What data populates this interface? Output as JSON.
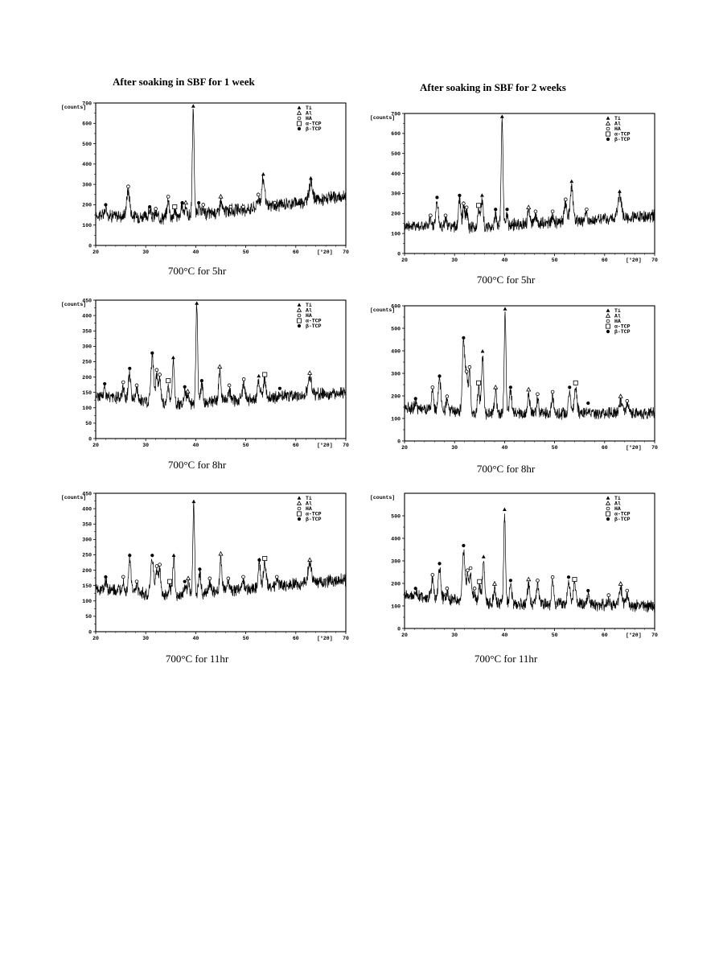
{
  "column_titles": [
    "After soaking  in SBF for 1 week",
    "After soaking  in SBF for 2 weeks"
  ],
  "chart_data": [
    {
      "type": "line",
      "column": "1 week",
      "caption": "700°C for 5hr",
      "ylabel": "[counts]",
      "xlabel": "[°2θ]",
      "xlim": [
        20,
        70
      ],
      "ylim": [
        0,
        700
      ],
      "xticks": [
        20,
        30,
        40,
        50,
        60,
        70
      ],
      "yticks": [
        0,
        100,
        200,
        300,
        400,
        500,
        600,
        700
      ],
      "legend": [
        "Ti",
        "Al",
        "HA",
        "α-TCP",
        "β-TCP"
      ],
      "baseline": {
        "x": [
          20,
          35,
          70
        ],
        "y": [
          150,
          135,
          240
        ]
      },
      "peaks": [
        {
          "x": 26.5,
          "y": 270,
          "w": 0.45,
          "marker": "HA"
        },
        {
          "x": 34.5,
          "y": 220,
          "w": 0.35,
          "marker": "HA"
        },
        {
          "x": 39.5,
          "y": 670,
          "w": 0.25,
          "marker": "Ti"
        },
        {
          "x": 45,
          "y": 220,
          "w": 0.3,
          "marker": "Al"
        },
        {
          "x": 52.5,
          "y": 230,
          "w": 0.4,
          "marker": "HA"
        },
        {
          "x": 53.5,
          "y": 330,
          "w": 0.4,
          "marker": "Ti"
        },
        {
          "x": 63,
          "y": 310,
          "w": 0.5,
          "marker": "Ti"
        },
        {
          "x": 38,
          "y": 190,
          "w": 0.3,
          "marker": "Al"
        },
        {
          "x": 37.3,
          "y": 190,
          "w": 0.3,
          "marker": "β-TCP"
        },
        {
          "x": 35.8,
          "y": 170,
          "w": 0.3,
          "marker": "α-TCP"
        },
        {
          "x": 30.8,
          "y": 170,
          "w": 0.3,
          "marker": "β-TCP"
        },
        {
          "x": 22,
          "y": 180,
          "w": 0.3,
          "marker": "β-TCP"
        },
        {
          "x": 40.6,
          "y": 190,
          "w": 0.25,
          "marker": "β-TCP"
        },
        {
          "x": 41.5,
          "y": 180,
          "w": 0.3,
          "marker": "HA"
        },
        {
          "x": 55.8,
          "y": 190,
          "w": 0.3,
          "marker": "HA"
        },
        {
          "x": 47,
          "y": 170,
          "w": 0.3,
          "marker": "HA"
        },
        {
          "x": 49.5,
          "y": 170,
          "w": 0.3,
          "marker": "HA"
        },
        {
          "x": 32,
          "y": 160,
          "w": 0.3,
          "marker": "HA"
        }
      ]
    },
    {
      "type": "line",
      "column": "2 weeks",
      "caption": "700°C for 5hr",
      "ylabel": "[counts]",
      "xlabel": "[°2θ]",
      "xlim": [
        20,
        70
      ],
      "ylim": [
        0,
        700
      ],
      "xticks": [
        20,
        30,
        40,
        50,
        60,
        70
      ],
      "yticks": [
        0,
        100,
        200,
        300,
        400,
        500,
        600,
        700
      ],
      "legend": [
        "Ti",
        "Al",
        "HA",
        "α-TCP",
        "β-TCP"
      ],
      "baseline": {
        "x": [
          20,
          35,
          70
        ],
        "y": [
          140,
          130,
          190
        ]
      },
      "peaks": [
        {
          "x": 26.5,
          "y": 260,
          "w": 0.35,
          "marker": "β-TCP"
        },
        {
          "x": 31,
          "y": 270,
          "w": 0.3,
          "marker": "β-TCP"
        },
        {
          "x": 31.8,
          "y": 230,
          "w": 0.3,
          "marker": "HA"
        },
        {
          "x": 32.4,
          "y": 210,
          "w": 0.3,
          "marker": "HA"
        },
        {
          "x": 34.8,
          "y": 220,
          "w": 0.3,
          "marker": "α-TCP"
        },
        {
          "x": 35.5,
          "y": 270,
          "w": 0.3,
          "marker": "Ti"
        },
        {
          "x": 38.2,
          "y": 200,
          "w": 0.3,
          "marker": "β-TCP"
        },
        {
          "x": 39.5,
          "y": 680,
          "w": 0.25,
          "marker": "Ti"
        },
        {
          "x": 40.5,
          "y": 200,
          "w": 0.25,
          "marker": "β-TCP"
        },
        {
          "x": 44.8,
          "y": 210,
          "w": 0.3,
          "marker": "Al"
        },
        {
          "x": 46.2,
          "y": 190,
          "w": 0.3,
          "marker": "HA"
        },
        {
          "x": 49.6,
          "y": 190,
          "w": 0.3,
          "marker": "HA"
        },
        {
          "x": 52.2,
          "y": 250,
          "w": 0.4,
          "marker": "HA"
        },
        {
          "x": 53.4,
          "y": 340,
          "w": 0.4,
          "marker": "Ti"
        },
        {
          "x": 56.4,
          "y": 200,
          "w": 0.3,
          "marker": "HA"
        },
        {
          "x": 63,
          "y": 290,
          "w": 0.5,
          "marker": "Ti"
        },
        {
          "x": 25.2,
          "y": 170,
          "w": 0.3,
          "marker": "HA"
        },
        {
          "x": 28.2,
          "y": 170,
          "w": 0.3,
          "marker": "HA"
        }
      ]
    },
    {
      "type": "line",
      "column": "1 week",
      "caption": "700°C for 8hr",
      "ylabel": "[counts]",
      "xlabel": "[°2θ]",
      "xlim": [
        20,
        70
      ],
      "ylim": [
        0,
        450
      ],
      "xticks": [
        20,
        30,
        40,
        50,
        60,
        70
      ],
      "yticks": [
        0,
        50,
        100,
        150,
        200,
        250,
        300,
        350,
        400,
        450
      ],
      "legend": [
        "Ti",
        "Al",
        "HA",
        "α-TCP",
        "β-TCP"
      ],
      "baseline": {
        "x": [
          20,
          35,
          70
        ],
        "y": [
          140,
          110,
          150
        ]
      },
      "peaks": [
        {
          "x": 21.8,
          "y": 165,
          "w": 0.3,
          "marker": "β-TCP"
        },
        {
          "x": 25.5,
          "y": 170,
          "w": 0.3,
          "marker": "HA"
        },
        {
          "x": 26.8,
          "y": 215,
          "w": 0.35,
          "marker": "β-TCP"
        },
        {
          "x": 28.2,
          "y": 160,
          "w": 0.3,
          "marker": "HA"
        },
        {
          "x": 31.3,
          "y": 265,
          "w": 0.4,
          "marker": "β-TCP"
        },
        {
          "x": 32.2,
          "y": 210,
          "w": 0.3,
          "marker": "HA"
        },
        {
          "x": 32.8,
          "y": 195,
          "w": 0.3,
          "marker": "HA"
        },
        {
          "x": 34.5,
          "y": 175,
          "w": 0.3,
          "marker": "α-TCP"
        },
        {
          "x": 35.5,
          "y": 250,
          "w": 0.3,
          "marker": "Ti"
        },
        {
          "x": 37.8,
          "y": 155,
          "w": 0.3,
          "marker": "β-TCP"
        },
        {
          "x": 38.4,
          "y": 140,
          "w": 0.3,
          "marker": "Al"
        },
        {
          "x": 40.2,
          "y": 438,
          "w": 0.25,
          "marker": "Ti"
        },
        {
          "x": 41.2,
          "y": 175,
          "w": 0.3,
          "marker": "β-TCP"
        },
        {
          "x": 44.8,
          "y": 220,
          "w": 0.3,
          "marker": "Al"
        },
        {
          "x": 46.7,
          "y": 160,
          "w": 0.3,
          "marker": "HA"
        },
        {
          "x": 49.6,
          "y": 180,
          "w": 0.3,
          "marker": "HA"
        },
        {
          "x": 52.6,
          "y": 190,
          "w": 0.35,
          "marker": "Ti"
        },
        {
          "x": 53.8,
          "y": 195,
          "w": 0.35,
          "marker": "α-TCP"
        },
        {
          "x": 56.8,
          "y": 150,
          "w": 0.3,
          "marker": "β-TCP"
        },
        {
          "x": 62.8,
          "y": 200,
          "w": 0.5,
          "marker": "Al"
        }
      ]
    },
    {
      "type": "line",
      "column": "2 weeks",
      "caption": "700°C for 8hr",
      "ylabel": "[counts]",
      "xlabel": "[°2θ]",
      "xlim": [
        20,
        70
      ],
      "ylim": [
        0,
        600
      ],
      "xticks": [
        20,
        30,
        40,
        50,
        60,
        70
      ],
      "yticks": [
        0,
        100,
        200,
        300,
        400,
        500,
        600
      ],
      "legend": [
        "Ti",
        "Al",
        "HA",
        "α-TCP",
        "β-TCP"
      ],
      "baseline": {
        "x": [
          20,
          35,
          70
        ],
        "y": [
          150,
          120,
          125
        ]
      },
      "peaks": [
        {
          "x": 22.2,
          "y": 170,
          "w": 0.3,
          "marker": "β-TCP"
        },
        {
          "x": 25.6,
          "y": 220,
          "w": 0.3,
          "marker": "HA"
        },
        {
          "x": 27,
          "y": 270,
          "w": 0.35,
          "marker": "β-TCP"
        },
        {
          "x": 28.5,
          "y": 180,
          "w": 0.3,
          "marker": "HA"
        },
        {
          "x": 31.8,
          "y": 440,
          "w": 0.35,
          "marker": "β-TCP"
        },
        {
          "x": 32.4,
          "y": 290,
          "w": 0.3,
          "marker": "HA"
        },
        {
          "x": 33,
          "y": 310,
          "w": 0.3,
          "marker": "HA"
        },
        {
          "x": 34.8,
          "y": 240,
          "w": 0.3,
          "marker": "α-TCP"
        },
        {
          "x": 35.6,
          "y": 380,
          "w": 0.3,
          "marker": "Ti"
        },
        {
          "x": 38.2,
          "y": 220,
          "w": 0.3,
          "marker": "Al"
        },
        {
          "x": 40.1,
          "y": 570,
          "w": 0.25,
          "marker": "Ti"
        },
        {
          "x": 41.2,
          "y": 220,
          "w": 0.3,
          "marker": "β-TCP"
        },
        {
          "x": 44.8,
          "y": 210,
          "w": 0.3,
          "marker": "Al"
        },
        {
          "x": 46.6,
          "y": 190,
          "w": 0.3,
          "marker": "HA"
        },
        {
          "x": 49.6,
          "y": 200,
          "w": 0.3,
          "marker": "HA"
        },
        {
          "x": 53,
          "y": 220,
          "w": 0.35,
          "marker": "β-TCP"
        },
        {
          "x": 54.2,
          "y": 240,
          "w": 0.35,
          "marker": "α-TCP"
        },
        {
          "x": 56.7,
          "y": 150,
          "w": 0.3,
          "marker": "β-TCP"
        },
        {
          "x": 63.2,
          "y": 180,
          "w": 0.4,
          "marker": "Al"
        },
        {
          "x": 64.5,
          "y": 160,
          "w": 0.3,
          "marker": "HA"
        }
      ]
    },
    {
      "type": "line",
      "column": "1 week",
      "caption": "700°C for 11hr",
      "ylabel": "[counts]",
      "xlabel": "[°2θ]",
      "xlim": [
        20,
        70
      ],
      "ylim": [
        0,
        450
      ],
      "xticks": [
        20,
        30,
        40,
        50,
        60,
        70
      ],
      "yticks": [
        0,
        50,
        100,
        150,
        200,
        250,
        300,
        350,
        400,
        450
      ],
      "legend": [
        "Ti",
        "Al",
        "HA",
        "α-TCP",
        "β-TCP"
      ],
      "baseline": {
        "x": [
          20,
          35,
          70
        ],
        "y": [
          140,
          115,
          170
        ]
      },
      "peaks": [
        {
          "x": 22,
          "y": 165,
          "w": 0.3,
          "marker": "β-TCP"
        },
        {
          "x": 25.5,
          "y": 165,
          "w": 0.3,
          "marker": "HA"
        },
        {
          "x": 26.8,
          "y": 235,
          "w": 0.35,
          "marker": "β-TCP"
        },
        {
          "x": 28.2,
          "y": 150,
          "w": 0.3,
          "marker": "HA"
        },
        {
          "x": 31.3,
          "y": 235,
          "w": 0.4,
          "marker": "β-TCP"
        },
        {
          "x": 32.2,
          "y": 200,
          "w": 0.3,
          "marker": "HA"
        },
        {
          "x": 32.8,
          "y": 205,
          "w": 0.3,
          "marker": "HA"
        },
        {
          "x": 34.8,
          "y": 150,
          "w": 0.3,
          "marker": "α-TCP"
        },
        {
          "x": 35.6,
          "y": 235,
          "w": 0.3,
          "marker": "Ti"
        },
        {
          "x": 37.8,
          "y": 150,
          "w": 0.3,
          "marker": "β-TCP"
        },
        {
          "x": 38.5,
          "y": 160,
          "w": 0.3,
          "marker": "Al"
        },
        {
          "x": 39.6,
          "y": 410,
          "w": 0.25,
          "marker": "Ti"
        },
        {
          "x": 40.8,
          "y": 190,
          "w": 0.3,
          "marker": "β-TCP"
        },
        {
          "x": 42.8,
          "y": 160,
          "w": 0.3,
          "marker": "HA"
        },
        {
          "x": 45,
          "y": 240,
          "w": 0.3,
          "marker": "Al"
        },
        {
          "x": 46.5,
          "y": 160,
          "w": 0.3,
          "marker": "HA"
        },
        {
          "x": 49.5,
          "y": 165,
          "w": 0.3,
          "marker": "HA"
        },
        {
          "x": 52.7,
          "y": 220,
          "w": 0.35,
          "marker": "β-TCP"
        },
        {
          "x": 53.8,
          "y": 225,
          "w": 0.35,
          "marker": "α-TCP"
        },
        {
          "x": 56.2,
          "y": 165,
          "w": 0.3,
          "marker": "HA"
        },
        {
          "x": 62.8,
          "y": 220,
          "w": 0.5,
          "marker": "Al"
        }
      ]
    },
    {
      "type": "line",
      "column": "2 weeks",
      "caption": "700°C for 11hr",
      "ylabel": "[counts]",
      "xlabel": "[°2θ]",
      "xlim": [
        20,
        70
      ],
      "ylim": [
        0,
        600
      ],
      "xticks": [
        20,
        30,
        40,
        50,
        60,
        70
      ],
      "yticks": [
        0,
        100,
        200,
        300,
        400,
        500
      ],
      "legend": [
        "Ti",
        "Al",
        "HA",
        "α-TCP",
        "β-TCP"
      ],
      "baseline": {
        "x": [
          20,
          35,
          70
        ],
        "y": [
          150,
          115,
          100
        ]
      },
      "peaks": [
        {
          "x": 22.2,
          "y": 160,
          "w": 0.3,
          "marker": "β-TCP"
        },
        {
          "x": 25.6,
          "y": 220,
          "w": 0.3,
          "marker": "HA"
        },
        {
          "x": 27,
          "y": 270,
          "w": 0.35,
          "marker": "β-TCP"
        },
        {
          "x": 28.5,
          "y": 160,
          "w": 0.3,
          "marker": "HA"
        },
        {
          "x": 31.8,
          "y": 350,
          "w": 0.35,
          "marker": "β-TCP"
        },
        {
          "x": 32.6,
          "y": 240,
          "w": 0.3,
          "marker": "HA"
        },
        {
          "x": 33.2,
          "y": 250,
          "w": 0.3,
          "marker": "HA"
        },
        {
          "x": 34,
          "y": 160,
          "w": 0.3,
          "marker": "HA"
        },
        {
          "x": 35,
          "y": 190,
          "w": 0.3,
          "marker": "α-TCP"
        },
        {
          "x": 35.8,
          "y": 300,
          "w": 0.3,
          "marker": "Ti"
        },
        {
          "x": 38,
          "y": 180,
          "w": 0.3,
          "marker": "Al"
        },
        {
          "x": 40,
          "y": 510,
          "w": 0.25,
          "marker": "Ti"
        },
        {
          "x": 41.2,
          "y": 195,
          "w": 0.3,
          "marker": "β-TCP"
        },
        {
          "x": 44.8,
          "y": 200,
          "w": 0.3,
          "marker": "Al"
        },
        {
          "x": 46.6,
          "y": 195,
          "w": 0.3,
          "marker": "HA"
        },
        {
          "x": 49.6,
          "y": 210,
          "w": 0.3,
          "marker": "HA"
        },
        {
          "x": 52.8,
          "y": 210,
          "w": 0.35,
          "marker": "β-TCP"
        },
        {
          "x": 54,
          "y": 200,
          "w": 0.35,
          "marker": "α-TCP"
        },
        {
          "x": 56.7,
          "y": 150,
          "w": 0.3,
          "marker": "β-TCP"
        },
        {
          "x": 63.2,
          "y": 180,
          "w": 0.4,
          "marker": "Al"
        },
        {
          "x": 64.5,
          "y": 150,
          "w": 0.3,
          "marker": "HA"
        },
        {
          "x": 60.8,
          "y": 130,
          "w": 0.3,
          "marker": "HA"
        }
      ]
    }
  ]
}
